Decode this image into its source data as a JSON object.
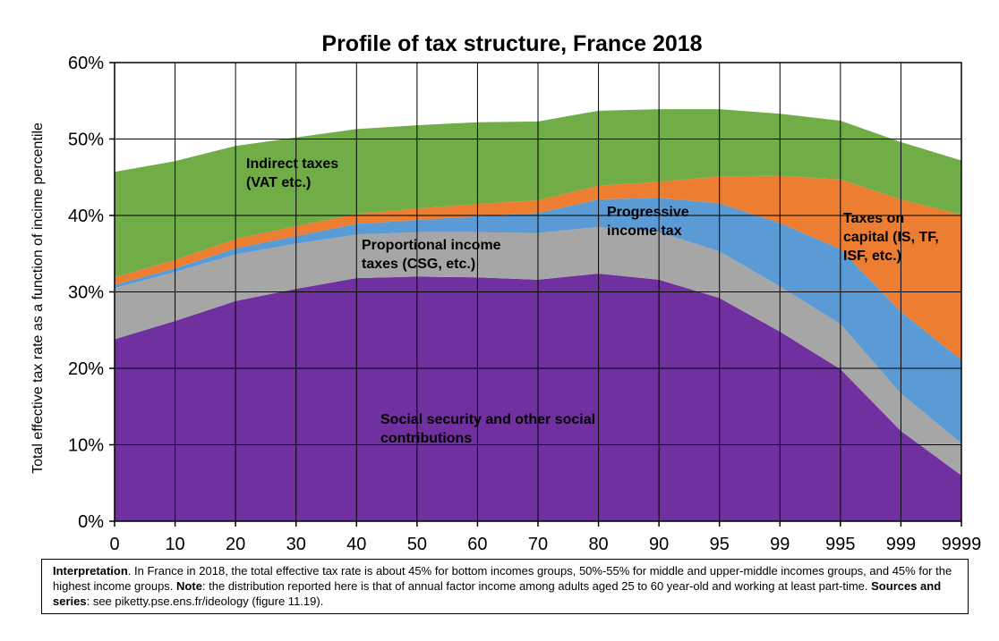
{
  "chart_data": {
    "type": "area",
    "stacked": true,
    "title": "Profile of tax structure, France 2018",
    "ylabel": "Total effective tax rate as a function of incime percentile",
    "xlabel": "",
    "ylim": [
      0,
      60
    ],
    "yticks": [
      "0%",
      "10%",
      "20%",
      "30%",
      "40%",
      "50%",
      "60%"
    ],
    "categories": [
      "0",
      "10",
      "20",
      "30",
      "40",
      "50",
      "60",
      "70",
      "80",
      "90",
      "95",
      "99",
      "995",
      "999",
      "9999"
    ],
    "grid": true,
    "series": [
      {
        "name": "Social security and other social contributions",
        "color": "#7030a0",
        "values": [
          23.8,
          26.2,
          28.8,
          30.4,
          31.8,
          32.0,
          31.9,
          31.6,
          32.4,
          31.6,
          29.2,
          24.8,
          19.9,
          11.8,
          6.0
        ]
      },
      {
        "name": "Proportional income taxes (CSG, etc.)",
        "color": "#a6a6a6",
        "values": [
          6.7,
          6.4,
          6.1,
          5.9,
          5.7,
          5.8,
          5.9,
          6.1,
          6.1,
          6.2,
          6.1,
          5.9,
          5.9,
          4.9,
          4.2
        ]
      },
      {
        "name": "Progressive income tax",
        "color": "#5b9bd5",
        "values": [
          0.4,
          0.5,
          0.8,
          1.0,
          1.4,
          1.6,
          2.1,
          2.6,
          3.6,
          4.5,
          6.3,
          8.3,
          9.8,
          10.7,
          10.9
        ]
      },
      {
        "name": "Taxes on capital (IS, TF, ISF, etc.)",
        "color": "#ed7d31",
        "values": [
          1.0,
          1.1,
          1.2,
          1.3,
          1.3,
          1.5,
          1.6,
          1.7,
          1.8,
          2.1,
          3.5,
          6.2,
          9.1,
          14.7,
          19.0
        ]
      },
      {
        "name": "Indirect taxes (VAT etc.)",
        "color": "#70ad47",
        "values": [
          13.8,
          12.9,
          12.2,
          11.6,
          11.1,
          10.9,
          10.7,
          10.3,
          9.8,
          9.5,
          8.8,
          8.1,
          7.7,
          7.5,
          7.1
        ]
      }
    ],
    "labels": [
      {
        "lines": [
          "Indirect taxes",
          "(VAT etc.)"
        ]
      },
      {
        "lines": [
          "Proportional income",
          "taxes (CSG, etc.)"
        ]
      },
      {
        "lines": [
          "Progressive",
          "income tax"
        ]
      },
      {
        "lines": [
          "Taxes on",
          "capital (IS, TF,",
          "ISF, etc.)"
        ]
      },
      {
        "lines": [
          "Social security and other social",
          "contributions"
        ]
      }
    ]
  },
  "note": {
    "interp_label": "Interpretation",
    "interp_text": ". In France in 2018, the total effective tax rate is about 45% for bottom incomes groups, 50%-55% for middle and upper-middle incomes groups, and 45% for the highest income groups. ",
    "note_label": "Note",
    "note_text": ": the distribution reported here is that of annual factor income among adults aged 25 to 60 year-old and working at least part-time. ",
    "sources_label": "Sources and series",
    "sources_text": ": see piketty.pse.ens.fr/ideology (figure 11.19)."
  }
}
